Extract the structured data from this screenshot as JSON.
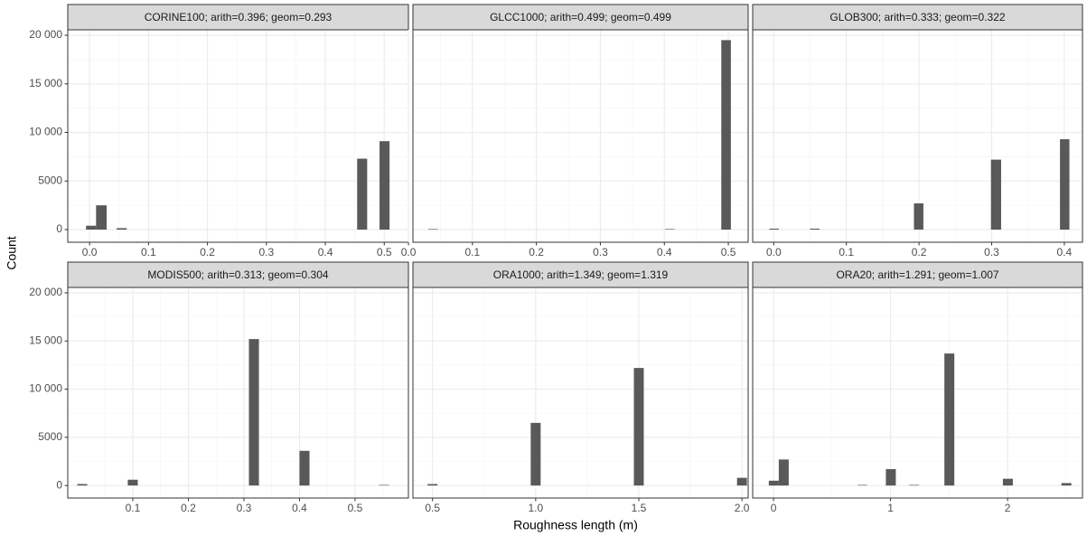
{
  "xlabel": "Roughness length (m)",
  "ylabel": "Count",
  "ylim": [
    -1300,
    20560
  ],
  "yticks": [
    0,
    5000,
    {
      "value": 10000,
      "label": "10 000"
    },
    {
      "value": 15000,
      "label": "15 000"
    },
    {
      "value": 20000,
      "label": "20 000"
    }
  ],
  "color": "#595959",
  "grid": true,
  "chart_data": [
    {
      "type": "histogram",
      "title": "CORINE100; arith=0.396; geom=0.293",
      "bins": [
        -0.006,
        0.011,
        0.029,
        0.046,
        0.063,
        0.454,
        0.471,
        0.492,
        0.509
      ],
      "counts": [
        400,
        2500,
        0,
        150,
        0,
        7300,
        0,
        9100
      ],
      "xlim": [
        -0.037,
        0.541
      ],
      "xticks": [
        {
          "value": 0,
          "label": "0.0"
        },
        0.1,
        0.2,
        0.3,
        0.4,
        0.5
      ]
    },
    {
      "type": "histogram",
      "title": "GLCC1000; arith=0.499; geom=0.499",
      "bins": [
        0.031,
        0.046,
        0.401,
        0.416,
        0.489,
        0.504
      ],
      "counts": [
        60,
        0,
        60,
        0,
        19500
      ],
      "xlim": [
        0.007,
        0.531
      ],
      "xticks": [
        {
          "value": 0,
          "label": "0.0"
        },
        0.1,
        0.2,
        0.3,
        0.4,
        0.5
      ]
    },
    {
      "type": "histogram",
      "title": "GLOB300; arith=0.333; geom=0.322",
      "bins": [
        -0.006,
        0.007,
        0.05,
        0.063,
        0.193,
        0.206,
        0.299,
        0.313,
        0.394,
        0.407
      ],
      "counts": [
        100,
        0,
        100,
        0,
        2700,
        0,
        7200,
        0,
        9300
      ],
      "xlim": [
        -0.029,
        0.425
      ],
      "xticks": [
        {
          "value": 0,
          "label": "0.0"
        },
        0.1,
        0.2,
        0.3,
        0.4
      ]
    },
    {
      "type": "histogram",
      "title": "MODIS500; arith=0.313; geom=0.304",
      "bins": [
        0.0,
        0.018,
        0.091,
        0.109,
        0.309,
        0.327,
        0.4,
        0.418,
        0.543,
        0.561
      ],
      "counts": [
        150,
        0,
        600,
        0,
        15200,
        0,
        3600,
        0,
        60
      ],
      "xlim": [
        -0.017,
        0.596
      ],
      "xticks": [
        0.1,
        0.2,
        0.3,
        0.4,
        0.5
      ]
    },
    {
      "type": "histogram",
      "title": "ORA1000; arith=1.349; geom=1.319",
      "bins": [
        0.476,
        0.524,
        0.976,
        1.024,
        1.476,
        1.524,
        1.976,
        2.024
      ],
      "counts": [
        150,
        0,
        6500,
        0,
        12200,
        0,
        800
      ],
      "xlim": [
        0.405,
        2.03
      ],
      "xticks": [
        0.5,
        {
          "value": 1,
          "label": "1.0"
        },
        1.5,
        {
          "value": 2,
          "label": "2.0"
        }
      ]
    },
    {
      "type": "histogram",
      "title": "ORA20; arith=1.291; geom=1.007",
      "bins": [
        -0.04,
        0.045,
        0.13,
        0.72,
        0.8,
        0.96,
        1.045,
        1.16,
        1.245,
        1.46,
        1.545,
        1.96,
        2.045,
        2.46,
        2.545
      ],
      "counts": [
        500,
        2700,
        0,
        60,
        0,
        1700,
        0,
        60,
        0,
        13700,
        0,
        700,
        0,
        250
      ],
      "xlim": [
        -0.178,
        2.64
      ],
      "xticks": [
        0,
        1,
        2
      ]
    }
  ]
}
